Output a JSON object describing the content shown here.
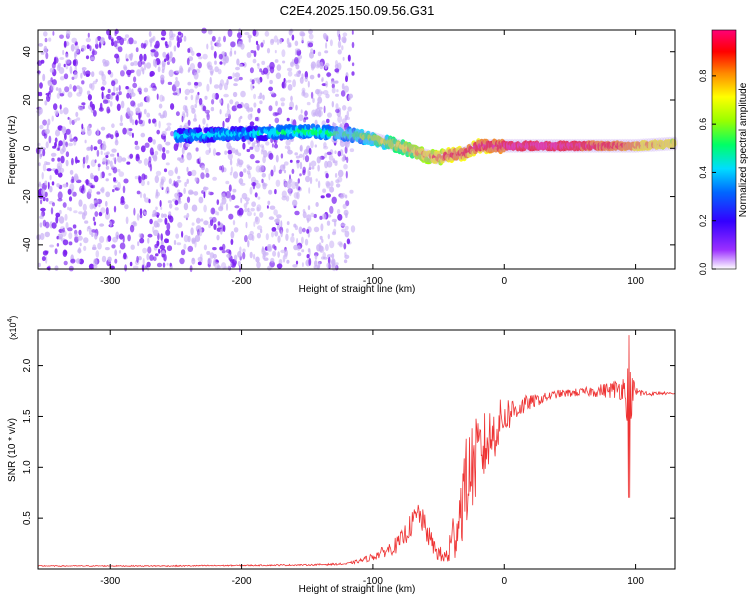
{
  "title": "C2E4.2025.150.09.56.G31",
  "chart_data": [
    {
      "type": "heatmap",
      "xlabel": "Height of straight line (km)",
      "ylabel": "Frequency (Hz)",
      "xlim": [
        -355,
        130
      ],
      "ylim": [
        -50,
        49
      ],
      "xticks": [
        -300,
        -200,
        -100,
        0,
        100
      ],
      "yticks": [
        -40,
        -20,
        0,
        20,
        40
      ],
      "colorbar": {
        "label": "Normalized spectral amplitude",
        "range": [
          0,
          0.99
        ],
        "ticks": [
          "0.0",
          "0.2",
          "0.4",
          "0.6",
          "0.8"
        ],
        "colormap": [
          "#ffffff",
          "#8a2be2",
          "#3300ff",
          "#00ccff",
          "#00ff66",
          "#ffff00",
          "#ff8800",
          "#ff0000",
          "#ff00aa"
        ]
      },
      "noise_region": {
        "x_from": -355,
        "x_to": -115
      },
      "ridge": {
        "x": [
          -250,
          -200,
          -150,
          -120,
          -100,
          -80,
          -60,
          -50,
          -45,
          -30,
          -20,
          0,
          40,
          80,
          100,
          130
        ],
        "y": [
          5,
          6,
          7,
          6,
          4,
          1,
          -3,
          -4,
          -3,
          -2,
          1,
          1,
          1,
          1,
          1,
          2
        ],
        "amplitude": [
          0.4,
          0.4,
          0.5,
          0.5,
          0.6,
          0.7,
          0.8,
          0.85,
          0.9,
          0.9,
          0.95,
          0.99,
          0.99,
          0.9,
          0.8,
          0.7
        ]
      }
    },
    {
      "type": "line",
      "xlabel": "Height of straight line (km)",
      "ylabel": "SNR (10 * v/v)",
      "yscale_label": "(x10",
      "yscale_exp": "4",
      "xlim": [
        -355,
        130
      ],
      "ylim": [
        0,
        2.35
      ],
      "xticks": [
        -300,
        -200,
        -100,
        0,
        100
      ],
      "yticks": [
        "0.5",
        "1.0",
        "1.5",
        "2.0"
      ],
      "color": "#ee3333",
      "x": [
        -355,
        -300,
        -250,
        -200,
        -150,
        -120,
        -110,
        -100,
        -90,
        -80,
        -70,
        -65,
        -60,
        -55,
        -50,
        -45,
        -40,
        -35,
        -30,
        -25,
        -20,
        -15,
        -10,
        -5,
        0,
        10,
        20,
        30,
        40,
        50,
        60,
        70,
        80,
        90,
        95,
        100,
        110,
        120,
        130
      ],
      "y": [
        0.03,
        0.03,
        0.03,
        0.035,
        0.04,
        0.05,
        0.08,
        0.12,
        0.18,
        0.25,
        0.45,
        0.55,
        0.4,
        0.25,
        0.15,
        0.1,
        0.25,
        0.5,
        0.8,
        1.0,
        1.1,
        1.2,
        1.3,
        1.4,
        1.5,
        1.58,
        1.64,
        1.68,
        1.72,
        1.73,
        1.74,
        1.75,
        1.76,
        1.78,
        1.72,
        1.74,
        1.72,
        1.73,
        1.72
      ],
      "noise_amplitude": [
        0.005,
        0.005,
        0.006,
        0.006,
        0.007,
        0.01,
        0.02,
        0.04,
        0.06,
        0.09,
        0.12,
        0.14,
        0.12,
        0.1,
        0.08,
        0.1,
        0.25,
        0.35,
        0.45,
        0.45,
        0.4,
        0.35,
        0.3,
        0.25,
        0.2,
        0.12,
        0.07,
        0.05,
        0.04,
        0.04,
        0.04,
        0.06,
        0.08,
        0.12,
        0.35,
        0.06,
        0.02,
        0.015,
        0.01
      ]
    }
  ]
}
